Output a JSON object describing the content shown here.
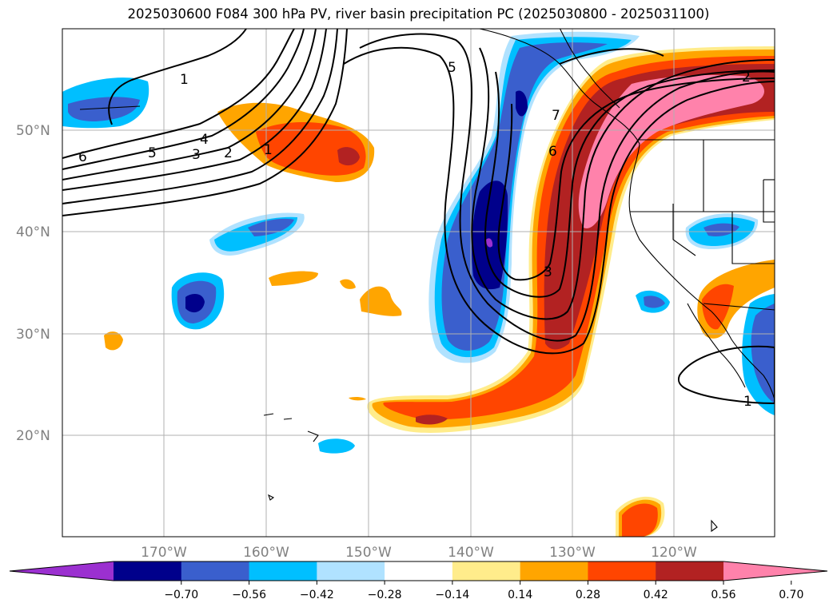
{
  "title": "2025030600 F084 300 hPa PV, river basin precipitation PC (2025030800 - 2025031100)",
  "lat_labels": [
    "50°N",
    "40°N",
    "30°N",
    "20°N"
  ],
  "lon_labels": [
    "170°W",
    "160°W",
    "150°W",
    "140°W",
    "130°W",
    "120°W"
  ],
  "colorbar": {
    "colors": [
      "#9b30d0",
      "#00008b",
      "#3a5fcd",
      "#00bfff",
      "#b0e2ff",
      "#ffffff",
      "#ffec8b",
      "#ffa500",
      "#ff4500",
      "#b22222",
      "#ff82ab"
    ],
    "tick_labels": [
      "−0.70",
      "−0.56",
      "−0.42",
      "−0.28",
      "−0.14",
      "0.14",
      "0.28",
      "0.42",
      "0.56",
      "0.70"
    ]
  },
  "contour_labels": [
    "6",
    "5",
    "3",
    "2",
    "4",
    "1",
    "1",
    "5",
    "7",
    "2",
    "6",
    "3",
    "1"
  ],
  "colors": {
    "grid": "#b0b0b0",
    "coast": "#000000",
    "contour": "#000000"
  }
}
